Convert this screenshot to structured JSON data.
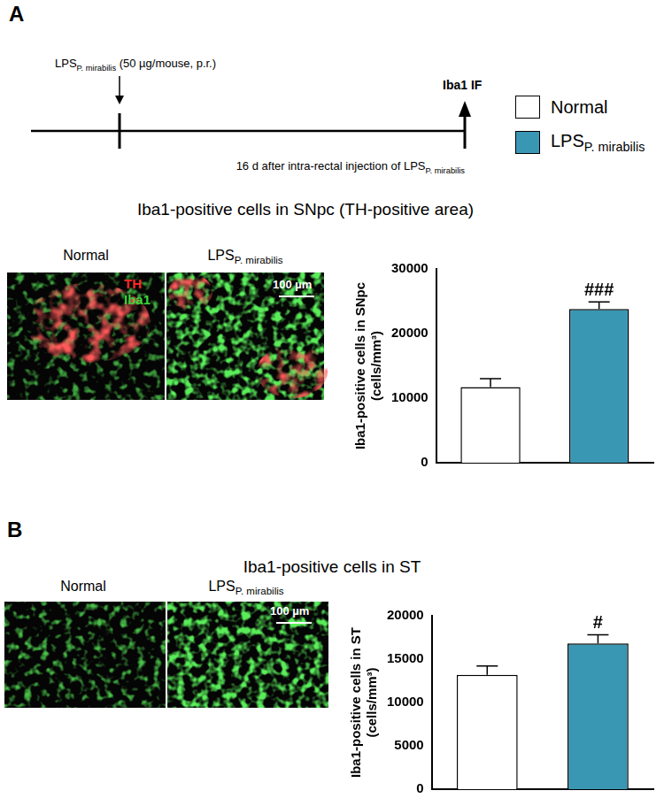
{
  "panels": [
    {
      "label": "A",
      "timeline": {
        "injection": {
          "text": "LPS",
          "subscript": "P. mirabilis",
          "suffix": " (50 µg/mouse, p.r.)"
        },
        "endpoint": "Iba1 IF",
        "duration": {
          "text": "16 d after intra-rectal injection of LPS",
          "subscript": "P. mirabilis"
        }
      },
      "title": "Iba1-positive cells in SNpc (TH-positive area)",
      "images": [
        {
          "text": "Normal"
        },
        {
          "text": "LPS",
          "subscript": "P. mirabilis"
        }
      ],
      "stain_labels": [
        {
          "text": "TH",
          "color": "#ff2a2a"
        },
        {
          "text": "Iba1",
          "color": "#3ad63a"
        }
      ],
      "scale_bar": "100 µm"
    },
    {
      "label": "B",
      "title": "Iba1-positive cells in ST",
      "images": [
        {
          "text": "Normal"
        },
        {
          "text": "LPS",
          "subscript": "P. mirabilis"
        }
      ],
      "scale_bar": "100 µm"
    }
  ],
  "legend": [
    {
      "text": "Normal",
      "color": "#ffffff"
    },
    {
      "text": "LPS",
      "subscript": "P. mirabilis",
      "color": "#3a97b3"
    }
  ],
  "chart_data": [
    {
      "type": "bar",
      "y_label": [
        "Iba1-positive cells in SNpc",
        "(cells/mm³)"
      ],
      "categories": [
        null,
        null
      ],
      "values": [
        11700,
        23800
      ],
      "errors": [
        1300,
        1100
      ],
      "colors": [
        "#ffffff",
        "#3a97b3"
      ],
      "ylim": [
        0,
        30000
      ],
      "yticks": [
        0,
        10000,
        20000,
        30000
      ],
      "grid": false,
      "tick_labels": "y",
      "annotations": [
        {
          "category_index": 1,
          "text": "###"
        }
      ]
    },
    {
      "type": "bar",
      "y_label": [
        "Iba1-positive cells in ST",
        "(cells/mm³)"
      ],
      "categories": [
        null,
        null
      ],
      "values": [
        13200,
        16800
      ],
      "errors": [
        1000,
        1000
      ],
      "colors": [
        "#ffffff",
        "#3a97b3"
      ],
      "ylim": [
        0,
        20000
      ],
      "yticks": [
        0,
        5000,
        10000,
        15000,
        20000
      ],
      "grid": false,
      "tick_labels": "y",
      "annotations": [
        {
          "category_index": 1,
          "text": "#"
        }
      ]
    }
  ]
}
